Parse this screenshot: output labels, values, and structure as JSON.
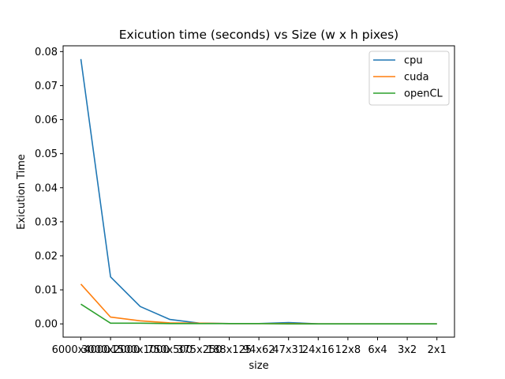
{
  "chart_data": {
    "type": "line",
    "title": "Exicution time (seconds) vs Size (w x h pixes)",
    "xlabel": "size",
    "ylabel": "Exicution Time",
    "categories": [
      "6000x4000",
      "3000x2000",
      "1500x1000",
      "750x500",
      "375x250",
      "188x125",
      "94x62",
      "47x31",
      "24x16",
      "12x8",
      "6x4",
      "3x2",
      "2x1"
    ],
    "series": [
      {
        "name": "cpu",
        "color": "#1f77b4",
        "values": [
          0.0778,
          0.0138,
          0.0051,
          0.0013,
          0.0002,
          0.0001,
          0.0001,
          0.0004,
          0.0,
          0.0,
          0.0,
          0.0,
          0.0
        ]
      },
      {
        "name": "cuda",
        "color": "#ff7f0e",
        "values": [
          0.0117,
          0.002,
          0.0009,
          0.0003,
          0.0002,
          0.0001,
          0.0001,
          0.0001,
          0.0,
          0.0,
          0.0,
          0.0,
          0.0
        ]
      },
      {
        "name": "openCL",
        "color": "#2ca02c",
        "values": [
          0.0058,
          0.0002,
          0.0002,
          0.0001,
          0.0001,
          0.0001,
          0.0001,
          0.0,
          0.0,
          0.0,
          0.0,
          0.0,
          0.0
        ]
      }
    ],
    "yticks": [
      "0.00",
      "0.01",
      "0.02",
      "0.03",
      "0.04",
      "0.05",
      "0.06",
      "0.07",
      "0.08"
    ],
    "ylim": [
      -0.0039,
      0.0817
    ],
    "grid": false,
    "legend_position": "top-right"
  }
}
